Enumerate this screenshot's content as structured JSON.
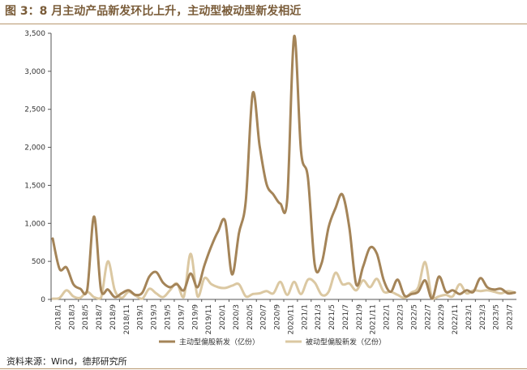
{
  "title": "图 3：8 月主动产品新发环比上升，主动型被动型新发相近",
  "source": "资料来源：Wind，德邦研究所",
  "colors": {
    "active": "#a48458",
    "passive": "#dbc8a2",
    "accent": "#7a5c39"
  },
  "chart_data": {
    "type": "line",
    "title": "",
    "xlabel": "",
    "ylabel": "",
    "ylim": [
      0,
      3500
    ],
    "yticks": [
      0,
      500,
      1000,
      1500,
      2000,
      2500,
      3000,
      3500
    ],
    "ytick_labels": [
      "0",
      "500",
      "1,000",
      "1,500",
      "2,000",
      "2,500",
      "3,000",
      "3,500"
    ],
    "xtick_labels": [
      "2018/1",
      "2018/3",
      "2018/5",
      "2018/7",
      "2018/9",
      "2018/11",
      "2019/1",
      "2019/3",
      "2019/5",
      "2019/7",
      "2019/9",
      "2019/11",
      "2020/1",
      "2020/3",
      "2020/5",
      "2020/7",
      "2020/9",
      "2020/11",
      "2021/1",
      "2021/3",
      "2021/5",
      "2021/7",
      "2021/9",
      "2021/11",
      "2022/1",
      "2022/3",
      "2022/5",
      "2022/7",
      "2022/9",
      "2022/11",
      "2023/1",
      "2023/3",
      "2023/5",
      "2023/7"
    ],
    "legend_position": "bottom",
    "series": [
      {
        "name": "主动型偏股新发（亿份）",
        "color": "#a48458",
        "values": [
          800,
          400,
          420,
          200,
          140,
          120,
          1090,
          120,
          130,
          30,
          80,
          120,
          60,
          90,
          300,
          360,
          220,
          160,
          200,
          120,
          340,
          160,
          450,
          700,
          900,
          1030,
          330,
          870,
          1300,
          2710,
          2020,
          1520,
          1380,
          1260,
          1320,
          3460,
          1950,
          1600,
          450,
          480,
          950,
          1200,
          1380,
          950,
          200,
          430,
          680,
          600,
          250,
          100,
          260,
          50,
          70,
          100,
          250,
          10,
          300,
          100,
          120,
          70,
          120,
          100,
          280,
          160,
          130,
          140,
          80,
          90
        ]
      },
      {
        "name": "被动型偏股新发（亿份）",
        "color": "#dbc8a2",
        "values": [
          10,
          20,
          120,
          40,
          20,
          100,
          30,
          20,
          500,
          120,
          20,
          100,
          50,
          10,
          140,
          80,
          30,
          120,
          210,
          30,
          600,
          40,
          280,
          200,
          160,
          150,
          180,
          200,
          40,
          70,
          80,
          110,
          80,
          230,
          60,
          230,
          70,
          260,
          220,
          60,
          100,
          350,
          200,
          210,
          120,
          250,
          160,
          270,
          100,
          100,
          60,
          20,
          90,
          160,
          490,
          10,
          40,
          60,
          40,
          200,
          80,
          120,
          110,
          120,
          100,
          80,
          110,
          90
        ]
      }
    ]
  }
}
